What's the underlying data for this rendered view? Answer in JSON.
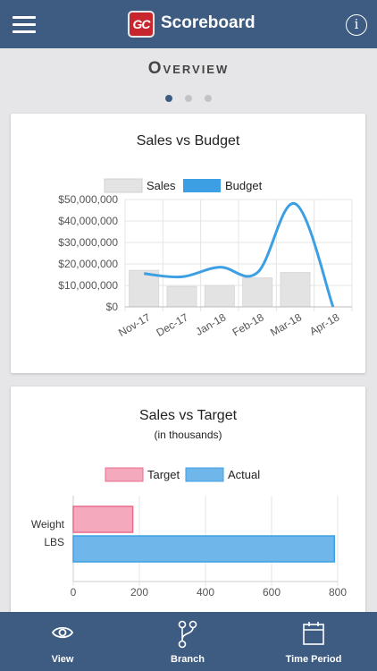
{
  "header": {
    "logo_text": "GC",
    "title": "Scoreboard",
    "info_glyph": "i",
    "menu_icon": "hamburger-menu-icon",
    "info_icon": "info-icon"
  },
  "overview": {
    "title": "Overview",
    "pages": 3,
    "active_page": 1
  },
  "chart_data": [
    {
      "type": "bar+line",
      "title": "Sales vs Budget",
      "categories": [
        "Nov-17",
        "Dec-17",
        "Jan-18",
        "Feb-18",
        "Mar-18",
        "Apr-18"
      ],
      "series": [
        {
          "name": "Sales",
          "type": "bar",
          "color": "#e3e3e3",
          "values": [
            17000000,
            9500000,
            10000000,
            13500000,
            16000000,
            0
          ]
        },
        {
          "name": "Budget",
          "type": "line",
          "color": "#3d9fe3",
          "values": [
            15500000,
            14000000,
            18500000,
            16000000,
            48000000,
            0
          ]
        }
      ],
      "ylim": [
        0,
        50000000
      ],
      "yticks": [
        0,
        10000000,
        20000000,
        30000000,
        40000000,
        50000000
      ],
      "ytick_labels": [
        "$0",
        "$10,000,000",
        "$20,000,000",
        "$30,000,000",
        "$40,000,000",
        "$50,000,000"
      ],
      "legend": "top",
      "grid": true
    },
    {
      "type": "horizontal-bar",
      "title": "Sales vs Target",
      "subtitle": "(in thousands)",
      "categories": [
        "Weight LBS"
      ],
      "category_lines": [
        "Weight",
        "LBS"
      ],
      "series": [
        {
          "name": "Target",
          "color": "#f4a9bc",
          "border": "#e86b8c",
          "values": [
            180
          ]
        },
        {
          "name": "Actual",
          "color": "#6fb6ea",
          "border": "#3d9fe3",
          "values": [
            790
          ]
        }
      ],
      "xlim": [
        0,
        800
      ],
      "xticks": [
        0,
        200,
        400,
        600,
        800
      ],
      "legend": "top",
      "grid": true
    }
  ],
  "tabbar": {
    "tabs": [
      {
        "label": "View",
        "icon": "eye-icon"
      },
      {
        "label": "Branch",
        "icon": "branch-icon"
      },
      {
        "label": "Time Period",
        "icon": "calendar-icon"
      }
    ]
  }
}
